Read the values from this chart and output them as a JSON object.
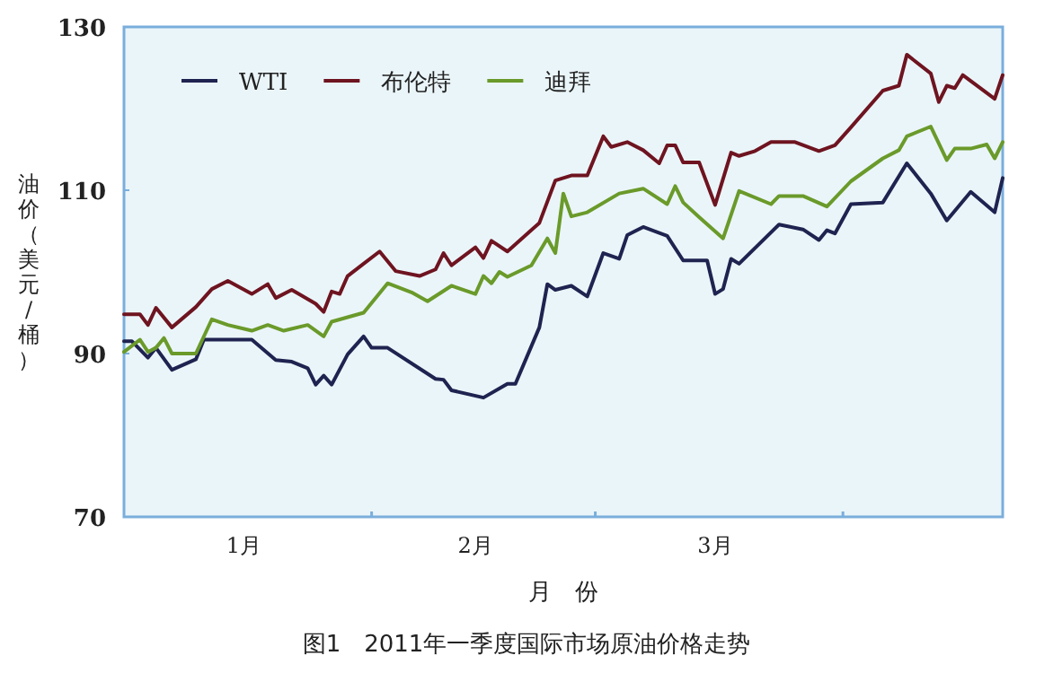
{
  "chart_data": {
    "type": "line",
    "title": "图1　2011年一季度国际市场原油价格走势",
    "xlabel": "月　份",
    "ylabel": "油价（美元/桶）",
    "xlim": [
      "--01-01",
      "--04-21"
    ],
    "xticks": [
      {
        "value": "--02-01",
        "label": null
      },
      {
        "value": "--03-01",
        "label": null
      },
      {
        "value": "--04-01",
        "label": null
      },
      {
        "value": "--01-16",
        "label": "1月"
      },
      {
        "value": "--02-14",
        "label": "2月"
      },
      {
        "value": "--03-16",
        "label": "3月"
      }
    ],
    "ylim": [
      70,
      130
    ],
    "yticks": [
      70,
      90,
      110,
      130
    ],
    "grid": false,
    "legend": "top left",
    "marker": "none",
    "line_style": "solid",
    "series": [
      {
        "name": "WTI",
        "color": "#1f2350",
        "x": [
          "--01-01",
          "--01-02",
          "--01-04",
          "--01-05",
          "--01-07",
          "--01-10",
          "--01-11",
          "--01-17",
          "--01-20",
          "--01-22",
          "--01-24",
          "--01-25",
          "--01-26",
          "--01-27",
          "--01-29",
          "--01-31",
          "--02-01",
          "--02-03",
          "--02-09",
          "--02-10",
          "--02-11",
          "--02-15",
          "--02-18",
          "--02-19",
          "--02-22",
          "--02-23",
          "--02-24",
          "--02-26",
          "--02-28",
          "--03-02",
          "--03-04",
          "--03-05",
          "--03-07",
          "--03-10",
          "--03-12",
          "--03-15",
          "--03-16",
          "--03-17",
          "--03-18",
          "--03-19",
          "--03-24",
          "--03-27",
          "--03-29",
          "--03-30",
          "--03-31",
          "--04-02",
          "--04-06",
          "--04-09",
          "--04-12",
          "--04-14",
          "--04-17",
          "--04-20",
          "--04-21"
        ],
        "values": [
          91.5,
          91.5,
          89.5,
          90.7,
          88.0,
          89.3,
          91.7,
          91.7,
          89.2,
          89.0,
          88.2,
          86.2,
          87.3,
          86.2,
          89.9,
          92.1,
          90.7,
          90.7,
          86.9,
          86.8,
          85.5,
          84.6,
          86.3,
          86.3,
          93.2,
          98.5,
          97.8,
          98.3,
          97.0,
          102.3,
          101.6,
          104.5,
          105.5,
          104.4,
          101.4,
          101.4,
          97.3,
          97.9,
          101.6,
          101.0,
          105.8,
          105.2,
          103.9,
          105.1,
          104.7,
          108.3,
          108.5,
          113.3,
          109.6,
          106.3,
          109.8,
          107.3,
          111.5
        ]
      },
      {
        "name": "布伦特",
        "color": "#6e1420",
        "x": [
          "--01-01",
          "--01-03",
          "--01-04",
          "--01-05",
          "--01-07",
          "--01-10",
          "--01-12",
          "--01-14",
          "--01-17",
          "--01-19",
          "--01-20",
          "--01-22",
          "--01-25",
          "--01-26",
          "--01-27",
          "--01-28",
          "--01-29",
          "--01-31",
          "--02-02",
          "--02-04",
          "--02-07",
          "--02-09",
          "--02-10",
          "--02-11",
          "--02-14",
          "--02-15",
          "--02-16",
          "--02-18",
          "--02-22",
          "--02-24",
          "--02-26",
          "--02-28",
          "--03-02",
          "--03-03",
          "--03-05",
          "--03-07",
          "--03-09",
          "--03-10",
          "--03-11",
          "--03-12",
          "--03-14",
          "--03-16",
          "--03-18",
          "--03-19",
          "--03-21",
          "--03-23",
          "--03-26",
          "--03-29",
          "--03-31",
          "--04-02",
          "--04-06",
          "--04-08",
          "--04-09",
          "--04-12",
          "--04-13",
          "--04-14",
          "--04-15",
          "--04-16",
          "--04-20",
          "--04-21"
        ],
        "values": [
          94.8,
          94.8,
          93.5,
          95.6,
          93.2,
          95.7,
          97.9,
          98.9,
          97.3,
          98.5,
          96.8,
          97.8,
          96.1,
          95.1,
          97.6,
          97.3,
          99.5,
          101.0,
          102.5,
          100.1,
          99.5,
          100.3,
          102.3,
          100.8,
          103.0,
          101.7,
          103.8,
          102.5,
          106.0,
          111.2,
          111.8,
          111.8,
          116.6,
          115.3,
          115.9,
          114.9,
          113.3,
          115.5,
          115.5,
          113.4,
          113.4,
          108.2,
          114.6,
          114.2,
          114.8,
          115.9,
          115.9,
          114.8,
          115.5,
          117.7,
          122.2,
          122.8,
          126.6,
          124.3,
          120.8,
          122.8,
          122.5,
          124.1,
          121.2,
          124.1
        ]
      },
      {
        "name": "迪拜",
        "color": "#6a9a2a",
        "x": [
          "--01-01",
          "--01-03",
          "--01-04",
          "--01-05",
          "--01-06",
          "--01-07",
          "--01-10",
          "--01-12",
          "--01-14",
          "--01-17",
          "--01-19",
          "--01-21",
          "--01-24",
          "--01-26",
          "--01-27",
          "--01-31",
          "--02-03",
          "--02-06",
          "--02-08",
          "--02-11",
          "--02-14",
          "--02-15",
          "--02-16",
          "--02-17",
          "--02-18",
          "--02-21",
          "--02-23",
          "--02-24",
          "--02-25",
          "--02-26",
          "--02-28",
          "--03-04",
          "--03-07",
          "--03-10",
          "--03-11",
          "--03-12",
          "--03-14",
          "--03-17",
          "--03-19",
          "--03-23",
          "--03-24",
          "--03-27",
          "--03-30",
          "--04-02",
          "--04-06",
          "--04-08",
          "--04-09",
          "--04-12",
          "--04-14",
          "--04-15",
          "--04-17",
          "--04-19",
          "--04-20",
          "--04-21"
        ],
        "values": [
          90.2,
          91.7,
          90.2,
          90.7,
          91.9,
          90.0,
          90.0,
          94.2,
          93.5,
          92.8,
          93.5,
          92.8,
          93.5,
          92.1,
          93.9,
          95.0,
          98.6,
          97.5,
          96.4,
          98.3,
          97.3,
          99.5,
          98.6,
          100.0,
          99.4,
          100.8,
          104.1,
          102.3,
          109.6,
          106.8,
          107.3,
          109.6,
          110.2,
          108.3,
          110.5,
          108.5,
          106.7,
          104.1,
          109.9,
          108.3,
          109.3,
          109.3,
          108.0,
          111.1,
          113.9,
          114.9,
          116.6,
          117.8,
          113.7,
          115.1,
          115.1,
          115.6,
          113.9,
          115.9
        ]
      }
    ]
  }
}
